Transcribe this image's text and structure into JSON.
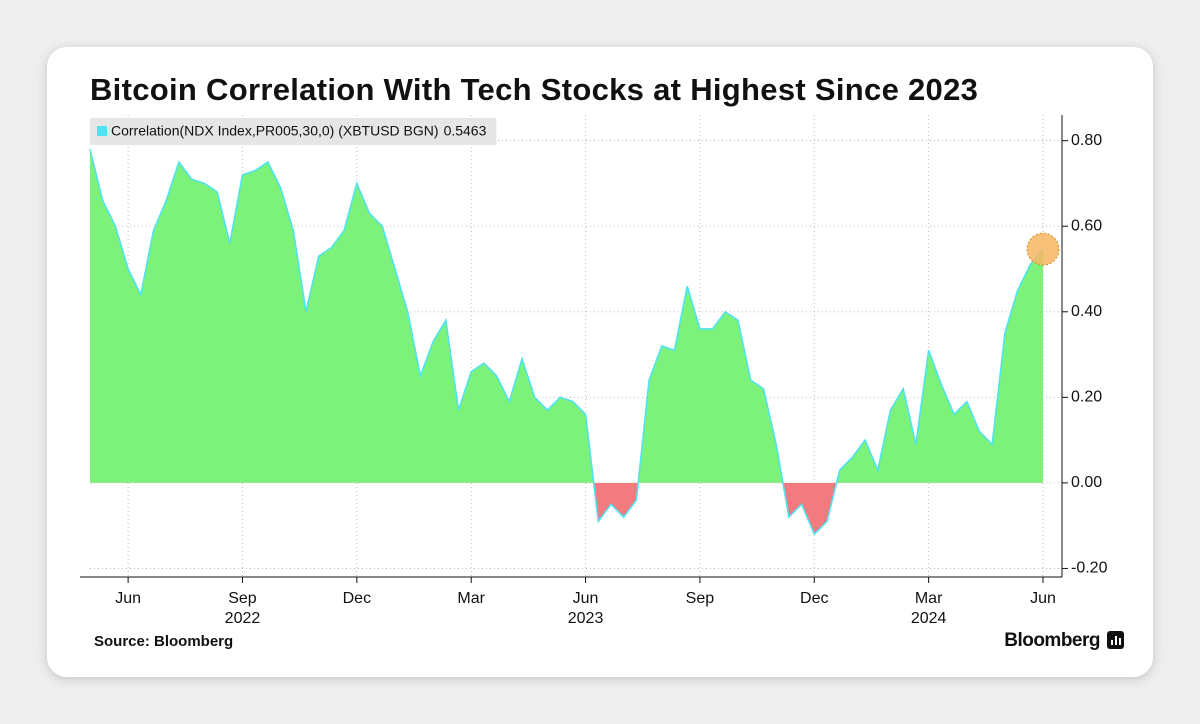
{
  "chart_data": {
    "type": "area",
    "title": "Bitcoin Correlation With Tech Stocks at Highest Since 2023",
    "source": "Source: Bloomberg",
    "brand": "Bloomberg",
    "categories": [
      null,
      null,
      null,
      "Jun",
      null,
      null,
      null,
      null,
      null,
      null,
      null,
      null,
      "Sep",
      null,
      null,
      null,
      null,
      null,
      null,
      null,
      null,
      "Dec",
      null,
      null,
      null,
      null,
      null,
      null,
      null,
      null,
      "Mar",
      null,
      null,
      null,
      null,
      null,
      null,
      null,
      null,
      "Jun",
      null,
      null,
      null,
      null,
      null,
      null,
      null,
      null,
      "Sep",
      null,
      null,
      null,
      null,
      null,
      null,
      null,
      null,
      "Dec",
      null,
      null,
      null,
      null,
      null,
      null,
      null,
      null,
      "Mar",
      null,
      null,
      null,
      null,
      null,
      null,
      null,
      null,
      "Jun"
    ],
    "x_year_labels": [
      null,
      null,
      null,
      null,
      null,
      null,
      null,
      null,
      null,
      null,
      null,
      null,
      "2022",
      null,
      null,
      null,
      null,
      null,
      null,
      null,
      null,
      null,
      null,
      null,
      null,
      null,
      null,
      null,
      null,
      null,
      null,
      null,
      null,
      null,
      null,
      null,
      null,
      null,
      null,
      "2023",
      null,
      null,
      null,
      null,
      null,
      null,
      null,
      null,
      null,
      null,
      null,
      null,
      null,
      null,
      null,
      null,
      null,
      null,
      null,
      null,
      null,
      null,
      null,
      null,
      null,
      null,
      "2024",
      null,
      null,
      null,
      null,
      null,
      null,
      null,
      null,
      null
    ],
    "series": [
      {
        "name": "Correlation(NDX Index,PR005,30,0) (XBTUSD BGN)",
        "color": "#4fe3ef",
        "values": [
          0.78,
          0.66,
          0.6,
          0.5,
          0.44,
          0.59,
          0.66,
          0.75,
          0.71,
          0.7,
          0.68,
          0.56,
          0.72,
          0.73,
          0.75,
          0.69,
          0.59,
          0.4,
          0.53,
          0.55,
          0.59,
          0.7,
          0.63,
          0.6,
          0.5,
          0.4,
          0.25,
          0.33,
          0.38,
          0.17,
          0.26,
          0.28,
          0.25,
          0.19,
          0.29,
          0.2,
          0.17,
          0.2,
          0.19,
          0.16,
          -0.09,
          -0.05,
          -0.08,
          -0.04,
          0.24,
          0.32,
          0.31,
          0.46,
          0.36,
          0.36,
          0.4,
          0.38,
          0.24,
          0.22,
          0.09,
          -0.08,
          -0.05,
          -0.12,
          -0.09,
          0.03,
          0.06,
          0.1,
          0.03,
          0.17,
          0.22,
          0.09,
          0.31,
          0.23,
          0.16,
          0.19,
          0.12,
          0.09,
          0.35,
          0.45,
          0.51,
          0.5463
        ]
      }
    ],
    "positive_color": "#7df27a",
    "negative_color": "#f37a7e",
    "highlight_color": "#f7b661",
    "ylim": [
      -0.22,
      0.86
    ],
    "yticks": [
      {
        "value": -0.2,
        "label": "-0.20"
      },
      {
        "value": 0,
        "label": "0.00"
      },
      {
        "value": 0.2,
        "label": "0.20"
      },
      {
        "value": 0.4,
        "label": "0.40"
      },
      {
        "value": 0.6,
        "label": "0.60"
      },
      {
        "value": 0.8,
        "label": "0.80"
      }
    ],
    "grid": true
  }
}
